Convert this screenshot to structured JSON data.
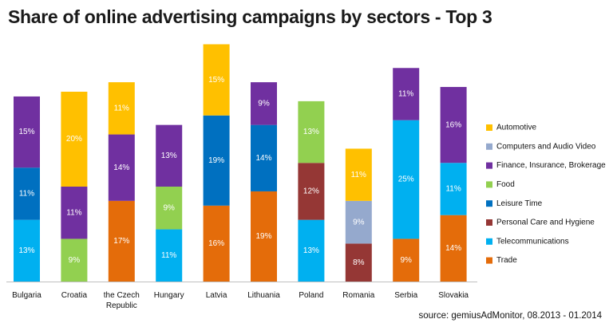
{
  "chart_data": {
    "type": "bar",
    "stacked": true,
    "title": "Share of online advertising campaigns by sectors - Top 3",
    "source": "source: gemiusAdMonitor, 08.2013 - 01.2014",
    "categories": [
      "Bulgaria",
      "Croatia",
      "the Czech Republic",
      "Hungary",
      "Latvia",
      "Lithuania",
      "Poland",
      "Romania",
      "Serbia",
      "Slovakia"
    ],
    "legend_position": "right",
    "sectors": [
      {
        "name": "Automotive",
        "color": "#FFC000"
      },
      {
        "name": "Computers and Audio Video",
        "color": "#95A9CD"
      },
      {
        "name": "Finance, Insurance, Brokerage",
        "color": "#7030A0"
      },
      {
        "name": "Food",
        "color": "#92D050"
      },
      {
        "name": "Leisure Time",
        "color": "#0070C0"
      },
      {
        "name": "Personal Care and Hygiene",
        "color": "#953735"
      },
      {
        "name": "Telecommunications",
        "color": "#00B0F0"
      },
      {
        "name": "Trade",
        "color": "#E46C0A"
      }
    ],
    "stacks": [
      [
        {
          "sector": "Telecommunications",
          "value": 13,
          "label": "13%"
        },
        {
          "sector": "Leisure Time",
          "value": 11,
          "label": "11%"
        },
        {
          "sector": "Finance, Insurance, Brokerage",
          "value": 15,
          "label": "15%"
        }
      ],
      [
        {
          "sector": "Food",
          "value": 9,
          "label": "9%"
        },
        {
          "sector": "Finance, Insurance, Brokerage",
          "value": 11,
          "label": "11%"
        },
        {
          "sector": "Automotive",
          "value": 20,
          "label": "20%"
        }
      ],
      [
        {
          "sector": "Trade",
          "value": 17,
          "label": "17%"
        },
        {
          "sector": "Finance, Insurance, Brokerage",
          "value": 14,
          "label": "14%"
        },
        {
          "sector": "Automotive",
          "value": 11,
          "label": "11%"
        }
      ],
      [
        {
          "sector": "Telecommunications",
          "value": 11,
          "label": "11%"
        },
        {
          "sector": "Food",
          "value": 9,
          "label": "9%"
        },
        {
          "sector": "Finance, Insurance, Brokerage",
          "value": 13,
          "label": "13%"
        }
      ],
      [
        {
          "sector": "Trade",
          "value": 16,
          "label": "16%"
        },
        {
          "sector": "Leisure Time",
          "value": 19,
          "label": "19%"
        },
        {
          "sector": "Automotive",
          "value": 15,
          "label": "15%"
        }
      ],
      [
        {
          "sector": "Trade",
          "value": 19,
          "label": "19%"
        },
        {
          "sector": "Leisure Time",
          "value": 14,
          "label": "14%"
        },
        {
          "sector": "Finance, Insurance, Brokerage",
          "value": 9,
          "label": "9%"
        }
      ],
      [
        {
          "sector": "Telecommunications",
          "value": 13,
          "label": "13%"
        },
        {
          "sector": "Personal Care and Hygiene",
          "value": 12,
          "label": "12%"
        },
        {
          "sector": "Food",
          "value": 13,
          "label": "13%"
        }
      ],
      [
        {
          "sector": "Personal Care and Hygiene",
          "value": 8,
          "label": "8%"
        },
        {
          "sector": "Computers and Audio Video",
          "value": 9,
          "label": "9%"
        },
        {
          "sector": "Automotive",
          "value": 11,
          "label": "11%"
        }
      ],
      [
        {
          "sector": "Trade",
          "value": 9,
          "label": "9%"
        },
        {
          "sector": "Telecommunications",
          "value": 25,
          "label": "25%"
        },
        {
          "sector": "Finance, Insurance, Brokerage",
          "value": 11,
          "label": "11%"
        }
      ],
      [
        {
          "sector": "Trade",
          "value": 14,
          "label": "14%"
        },
        {
          "sector": "Telecommunications",
          "value": 11,
          "label": "11%"
        },
        {
          "sector": "Finance, Insurance, Brokerage",
          "value": 16,
          "label": "16%"
        }
      ]
    ]
  }
}
